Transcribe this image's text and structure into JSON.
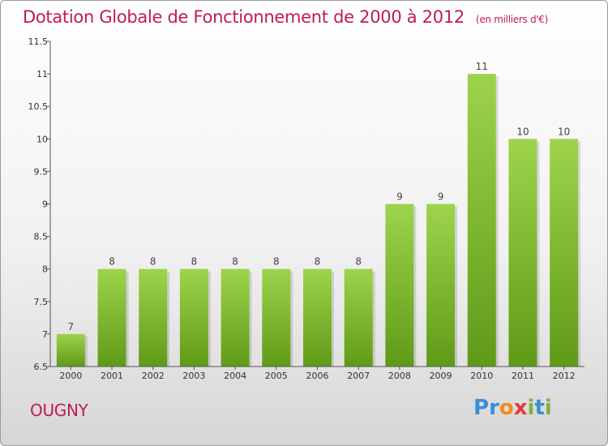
{
  "title": "Dotation Globale de Fonctionnement de 2000 à 2012",
  "subtitle": "(en milliers d'€)",
  "commune": "OUGNY",
  "logo": {
    "letters": [
      "P",
      "r",
      "o",
      "x",
      "i",
      "t",
      "i"
    ],
    "colors": [
      "#3a8fd6",
      "#3a8fd6",
      "#f08c1a",
      "#e53935",
      "#7cb342",
      "#3a8fd6",
      "#7cb342"
    ]
  },
  "colors": {
    "title": "#c2185b",
    "bar_top": "#9ed44c",
    "bar_bottom": "#5f9a17"
  },
  "chart_data": {
    "type": "bar",
    "title": "Dotation Globale de Fonctionnement de 2000 à 2012",
    "subtitle": "(en milliers d'€)",
    "categories": [
      "2000",
      "2001",
      "2002",
      "2003",
      "2004",
      "2005",
      "2006",
      "2007",
      "2008",
      "2009",
      "2010",
      "2011",
      "2012"
    ],
    "values": [
      7,
      8,
      8,
      8,
      8,
      8,
      8,
      8,
      9,
      9,
      11,
      10,
      10
    ],
    "data_labels": [
      "7",
      "8",
      "8",
      "8",
      "8",
      "8",
      "8",
      "8",
      "9",
      "9",
      "11",
      "10",
      "10"
    ],
    "ylim": [
      6.5,
      11.5
    ],
    "yticks": [
      6.5,
      7,
      7.5,
      8,
      8.5,
      9,
      9.5,
      10,
      10.5,
      11,
      11.5
    ],
    "ytick_labels": [
      "6.5",
      "7",
      "7.5",
      "8",
      "8.5",
      "9",
      "9.5",
      "10",
      "10.5",
      "11",
      "11.5"
    ],
    "xlabel": "",
    "ylabel": "",
    "grid": false,
    "legend": "none"
  }
}
